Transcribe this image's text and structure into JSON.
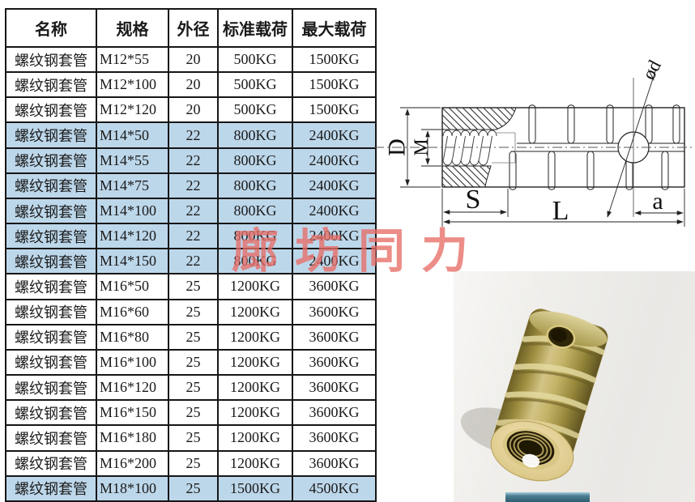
{
  "table": {
    "headers": [
      "名称",
      "规格",
      "外径",
      "标准载荷",
      "最大载荷"
    ],
    "rows": [
      {
        "name": "螺纹钢套管",
        "spec": "M12*55",
        "outer_diameter": "20",
        "standard_load": "500KG",
        "max_load": "1500KG",
        "highlight": false
      },
      {
        "name": "螺纹钢套管",
        "spec": "M12*100",
        "outer_diameter": "20",
        "standard_load": "500KG",
        "max_load": "1500KG",
        "highlight": false
      },
      {
        "name": "螺纹钢套管",
        "spec": "M12*120",
        "outer_diameter": "20",
        "standard_load": "500KG",
        "max_load": "1500KG",
        "highlight": false
      },
      {
        "name": "螺纹钢套管",
        "spec": "M14*50",
        "outer_diameter": "22",
        "standard_load": "800KG",
        "max_load": "2400KG",
        "highlight": true
      },
      {
        "name": "螺纹钢套管",
        "spec": "M14*55",
        "outer_diameter": "22",
        "standard_load": "800KG",
        "max_load": "2400KG",
        "highlight": true
      },
      {
        "name": "螺纹钢套管",
        "spec": "M14*75",
        "outer_diameter": "22",
        "standard_load": "800KG",
        "max_load": "2400KG",
        "highlight": true
      },
      {
        "name": "螺纹钢套管",
        "spec": "M14*100",
        "outer_diameter": "22",
        "standard_load": "800KG",
        "max_load": "2400KG",
        "highlight": true
      },
      {
        "name": "螺纹钢套管",
        "spec": "M14*120",
        "outer_diameter": "22",
        "standard_load": "800KG",
        "max_load": "2400KG",
        "highlight": true
      },
      {
        "name": "螺纹钢套管",
        "spec": "M14*150",
        "outer_diameter": "22",
        "standard_load": "800KG",
        "max_load": "2400KG",
        "highlight": true
      },
      {
        "name": "螺纹钢套管",
        "spec": "M16*50",
        "outer_diameter": "25",
        "standard_load": "1200KG",
        "max_load": "3600KG",
        "highlight": false
      },
      {
        "name": "螺纹钢套管",
        "spec": "M16*60",
        "outer_diameter": "25",
        "standard_load": "1200KG",
        "max_load": "3600KG",
        "highlight": false
      },
      {
        "name": "螺纹钢套管",
        "spec": "M16*80",
        "outer_diameter": "25",
        "standard_load": "1200KG",
        "max_load": "3600KG",
        "highlight": false
      },
      {
        "name": "螺纹钢套管",
        "spec": "M16*100",
        "outer_diameter": "25",
        "standard_load": "1200KG",
        "max_load": "3600KG",
        "highlight": false
      },
      {
        "name": "螺纹钢套管",
        "spec": "M16*120",
        "outer_diameter": "25",
        "standard_load": "1200KG",
        "max_load": "3600KG",
        "highlight": false
      },
      {
        "name": "螺纹钢套管",
        "spec": "M16*150",
        "outer_diameter": "25",
        "standard_load": "1200KG",
        "max_load": "3600KG",
        "highlight": false
      },
      {
        "name": "螺纹钢套管",
        "spec": "M16*180",
        "outer_diameter": "25",
        "standard_load": "1200KG",
        "max_load": "3600KG",
        "highlight": false
      },
      {
        "name": "螺纹钢套管",
        "spec": "M16*200",
        "outer_diameter": "25",
        "standard_load": "1200KG",
        "max_load": "3600KG",
        "highlight": false
      },
      {
        "name": "螺纹钢套管",
        "spec": "M18*100",
        "outer_diameter": "25",
        "standard_load": "1500KG",
        "max_load": "4500KG",
        "highlight": true
      }
    ]
  },
  "watermark": {
    "text": "廊坊同力",
    "color": "#e76d66"
  },
  "diagram": {
    "labels": {
      "outer_diameter_label": "D",
      "thread_label": "M",
      "socket_length_label": "S",
      "total_length_label": "L",
      "hole_offset_label": "a",
      "hole_diameter_label": "ød"
    }
  },
  "colors": {
    "row_highlight": "#bdd7ea",
    "table_border": "#161616",
    "watermark_red": "#e76d66",
    "photo_background": "#edecea",
    "insert_brass": "#b3a04a",
    "bottom_strip_teal": "#47788c"
  }
}
